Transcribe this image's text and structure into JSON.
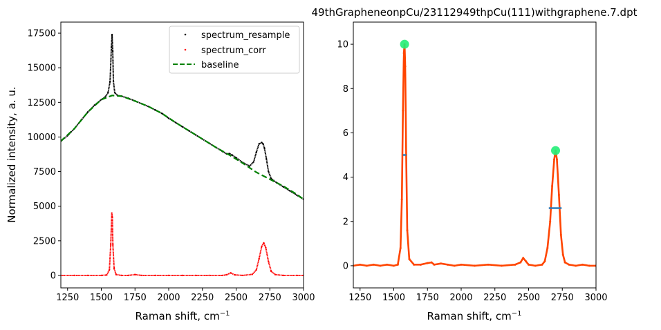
{
  "chart_data": [
    {
      "type": "line",
      "title": "",
      "xlabel": "Raman shift, cm",
      "xlabel_sup": "−1",
      "ylabel": "Normalized intensity, a. u.",
      "xlim": [
        1200,
        3000
      ],
      "ylim": [
        -900,
        18300
      ],
      "xticks": [
        1250,
        1500,
        1750,
        2000,
        2250,
        2500,
        2750,
        3000
      ],
      "yticks": [
        0,
        2500,
        5000,
        7500,
        10000,
        12500,
        15000,
        17500
      ],
      "legend_position": "top-right",
      "series": [
        {
          "name": "spectrum_resample",
          "color": "#000000",
          "style": "dots",
          "x": [
            1200,
            1250,
            1300,
            1350,
            1400,
            1450,
            1500,
            1530,
            1550,
            1565,
            1575,
            1580,
            1585,
            1590,
            1600,
            1620,
            1650,
            1700,
            1750,
            1800,
            1850,
            1900,
            1950,
            2000,
            2050,
            2100,
            2150,
            2200,
            2250,
            2300,
            2350,
            2400,
            2430,
            2450,
            2470,
            2500,
            2550,
            2600,
            2630,
            2650,
            2670,
            2690,
            2700,
            2710,
            2725,
            2740,
            2760,
            2800,
            2850,
            2900,
            2950,
            3000
          ],
          "y": [
            9700,
            10100,
            10600,
            11200,
            11800,
            12300,
            12700,
            12900,
            13200,
            14000,
            16500,
            17400,
            16200,
            14000,
            13200,
            13000,
            12950,
            12800,
            12600,
            12400,
            12200,
            11950,
            11700,
            11350,
            11050,
            10750,
            10450,
            10150,
            9850,
            9550,
            9250,
            8950,
            8780,
            8800,
            8700,
            8500,
            8150,
            7900,
            8200,
            8900,
            9500,
            9600,
            9500,
            9200,
            8400,
            7500,
            7000,
            6700,
            6400,
            6100,
            5800,
            5500
          ]
        },
        {
          "name": "spectrum_corr",
          "color": "#ff0000",
          "style": "dots",
          "x": [
            1200,
            1300,
            1400,
            1500,
            1540,
            1560,
            1570,
            1578,
            1582,
            1586,
            1595,
            1610,
            1650,
            1700,
            1750,
            1800,
            1900,
            2000,
            2100,
            2200,
            2300,
            2400,
            2430,
            2460,
            2490,
            2550,
            2620,
            2650,
            2670,
            2690,
            2705,
            2720,
            2740,
            2760,
            2790,
            2850,
            2950,
            3000
          ],
          "y": [
            0,
            0,
            0,
            0,
            30,
            400,
            2200,
            4500,
            4200,
            2200,
            500,
            60,
            0,
            0,
            60,
            0,
            0,
            0,
            0,
            0,
            0,
            0,
            50,
            180,
            40,
            0,
            80,
            400,
            1200,
            2100,
            2350,
            2000,
            1000,
            300,
            60,
            0,
            0,
            0
          ]
        },
        {
          "name": "baseline",
          "color": "#008000",
          "style": "dashed",
          "x": [
            1200,
            1300,
            1400,
            1500,
            1580,
            1650,
            1750,
            1850,
            1950,
            2050,
            2150,
            2250,
            2350,
            2450,
            2550,
            2650,
            2750,
            2850,
            2950,
            3000
          ],
          "y": [
            9700,
            10600,
            11800,
            12700,
            13000,
            12950,
            12600,
            12200,
            11700,
            11050,
            10450,
            9850,
            9250,
            8700,
            8100,
            7450,
            6950,
            6450,
            5850,
            5500
          ]
        }
      ]
    },
    {
      "type": "line",
      "title": "49thGrapheneonpCu/23112949thpCu(111)withgraphene.7.dpt",
      "xlabel": "Raman shift, cm",
      "xlabel_sup": "−1",
      "ylabel": "",
      "xlim": [
        1200,
        3000
      ],
      "ylim": [
        -1,
        11
      ],
      "xticks": [
        1250,
        1500,
        1750,
        2000,
        2250,
        2500,
        2750,
        3000
      ],
      "yticks": [
        0,
        2,
        4,
        6,
        8,
        10
      ],
      "series": [
        {
          "color": "#ff4500",
          "style": "line-dots",
          "x": [
            1200,
            1250,
            1300,
            1350,
            1400,
            1450,
            1500,
            1530,
            1550,
            1560,
            1568,
            1575,
            1580,
            1585,
            1592,
            1600,
            1615,
            1650,
            1700,
            1750,
            1780,
            1800,
            1850,
            1900,
            1950,
            2000,
            2100,
            2200,
            2300,
            2400,
            2440,
            2460,
            2480,
            2500,
            2550,
            2600,
            2620,
            2640,
            2660,
            2675,
            2690,
            2700,
            2710,
            2725,
            2740,
            2755,
            2770,
            2800,
            2850,
            2900,
            2950,
            3000
          ],
          "y": [
            0,
            0.05,
            0,
            0.05,
            0,
            0.05,
            0,
            0.05,
            0.8,
            3.0,
            7.0,
            9.6,
            10.0,
            9.0,
            5.0,
            1.6,
            0.3,
            0.05,
            0.05,
            0.12,
            0.15,
            0.05,
            0.1,
            0.05,
            0,
            0.05,
            0,
            0.05,
            0,
            0.05,
            0.15,
            0.35,
            0.2,
            0.05,
            0,
            0.05,
            0.2,
            0.8,
            2.0,
            3.6,
            4.8,
            5.2,
            4.8,
            3.2,
            1.4,
            0.5,
            0.15,
            0.05,
            0,
            0.05,
            0,
            0
          ]
        }
      ],
      "peaks": [
        {
          "x": 1580,
          "y": 10.0
        },
        {
          "x": 2700,
          "y": 5.2
        }
      ],
      "half_width_markers": [
        {
          "x0": 1568,
          "x1": 1592,
          "y": 5.0
        },
        {
          "x0": 2650,
          "x1": 2745,
          "y": 2.6
        }
      ],
      "peak_color": "#22ee77",
      "marker_color": "#2b7bba"
    }
  ]
}
